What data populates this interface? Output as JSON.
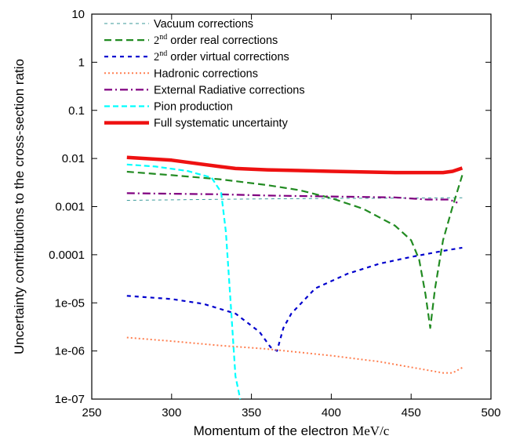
{
  "chart_data": {
    "type": "line",
    "xlabel": "Momentum of the electron",
    "xlabel_unit": "MeV/c",
    "ylabel": "Uncertainty contributions to the cross-section ratio",
    "xlim": [
      250,
      500
    ],
    "ylim": [
      1e-07,
      10
    ],
    "yscale": "log",
    "grid": false,
    "legend_position": "top-left",
    "x_ticks": [
      "250",
      "300",
      "350",
      "400",
      "450",
      "500"
    ],
    "y_ticks": [
      "10",
      "1",
      "0.1",
      "0.01",
      "0.001",
      "0.0001",
      "1e-05",
      "1e-06",
      "1e-07"
    ],
    "series": [
      {
        "name": "Vacuum corrections",
        "color": "#3a9a9a",
        "dash": "4,4",
        "width": 1,
        "x": [
          272,
          300,
          330,
          360,
          400,
          440,
          470,
          482
        ],
        "y": [
          0.00135,
          0.00138,
          0.00142,
          0.00145,
          0.00148,
          0.0015,
          0.00152,
          0.00153
        ]
      },
      {
        "name": "2nd order real corrections",
        "name_parts": [
          "2",
          "nd",
          " order real corrections"
        ],
        "color": "#228b22",
        "dash": "9,5",
        "width": 2.2,
        "x": [
          272,
          300,
          330,
          360,
          380,
          400,
          420,
          440,
          450,
          455,
          459,
          462,
          465,
          470,
          476,
          482
        ],
        "y": [
          0.0053,
          0.0045,
          0.0037,
          0.0028,
          0.0022,
          0.0015,
          0.0009,
          0.0004,
          0.0002,
          8e-05,
          1.5e-05,
          3e-06,
          2e-05,
          0.0002,
          0.001,
          0.0045
        ]
      },
      {
        "name": "2nd order virtual corrections",
        "name_parts": [
          "2",
          "nd",
          " order virtual corrections"
        ],
        "color": "#0000cd",
        "dash": "5,5",
        "width": 2.2,
        "x": [
          272,
          300,
          320,
          340,
          355,
          362,
          366,
          370,
          375,
          390,
          410,
          430,
          450,
          470,
          482
        ],
        "y": [
          1.4e-05,
          1.2e-05,
          9.5e-06,
          6e-06,
          2.5e-06,
          1.2e-06,
          1e-06,
          3e-06,
          6e-06,
          2e-05,
          4e-05,
          6.5e-05,
          9e-05,
          0.00012,
          0.00014
        ]
      },
      {
        "name": "Hadronic corrections",
        "color": "#ff7f50",
        "dash": "2,3",
        "width": 2,
        "x": [
          272,
          300,
          330,
          360,
          400,
          430,
          460,
          470,
          476,
          482
        ],
        "y": [
          1.9e-06,
          1.6e-06,
          1.3e-06,
          1.1e-06,
          8e-07,
          6e-07,
          4e-07,
          3.5e-07,
          3.5e-07,
          4.5e-07
        ]
      },
      {
        "name": "External Radiative corrections",
        "color": "#800080",
        "dash": "10,4,2,4",
        "width": 2.2,
        "x": [
          272,
          300,
          330,
          360,
          400,
          440,
          460,
          474,
          479
        ],
        "y": [
          0.0019,
          0.00185,
          0.0018,
          0.0017,
          0.00162,
          0.00155,
          0.0014,
          0.0014,
          0.0012
        ]
      },
      {
        "name": "Pion production",
        "color": "#00ffff",
        "dash": "7,4",
        "width": 2.2,
        "x": [
          272,
          290,
          310,
          325,
          331,
          334,
          337,
          340,
          343
        ],
        "y": [
          0.0075,
          0.0068,
          0.0055,
          0.004,
          0.002,
          0.0003,
          1e-05,
          3e-07,
          1e-07
        ]
      },
      {
        "name": "Full systematic uncertainty",
        "color": "#ee1111",
        "dash": "",
        "width": 4.5,
        "x": [
          272,
          300,
          330,
          340,
          360,
          400,
          440,
          470,
          476,
          482
        ],
        "y": [
          0.0105,
          0.0092,
          0.0068,
          0.0062,
          0.0058,
          0.0054,
          0.0051,
          0.0051,
          0.0054,
          0.0063
        ]
      }
    ]
  }
}
